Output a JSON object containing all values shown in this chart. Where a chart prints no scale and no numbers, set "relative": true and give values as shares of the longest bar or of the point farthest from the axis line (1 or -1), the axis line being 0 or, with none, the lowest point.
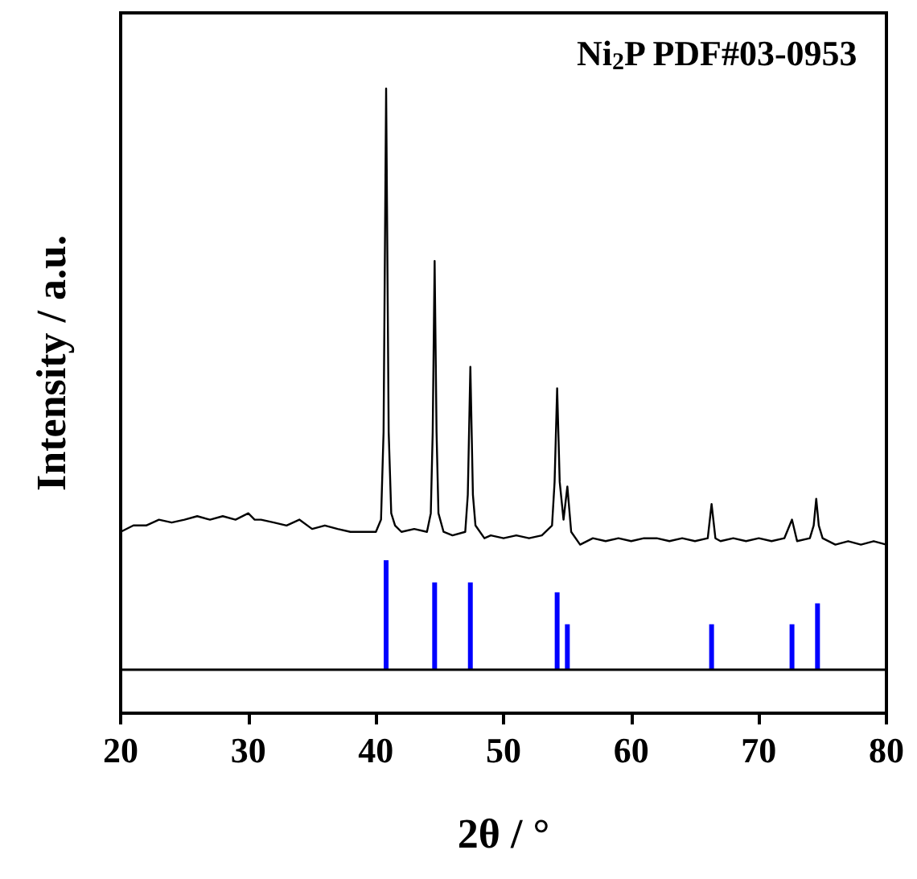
{
  "chart_data": {
    "type": "line",
    "relative": true,
    "xlabel": "2θ / °",
    "ylabel": "Intensity / a.u.",
    "annotations": [
      "Ni$_{2}$P PDF#03-0953"
    ],
    "xlim": [
      20,
      80
    ],
    "xticks": [
      20,
      30,
      40,
      50,
      60,
      70,
      80
    ],
    "grid": false,
    "marker": "none",
    "line_style": "solid",
    "ref_lines": [
      {
        "axis": "y",
        "value": 0,
        "color": "#000000"
      }
    ],
    "series": [
      {
        "color": "#000000",
        "x": [
          20,
          21,
          22,
          23,
          24,
          25,
          26,
          27,
          28,
          29,
          30,
          30.5,
          31,
          32,
          33,
          34,
          35,
          36,
          37,
          38,
          39,
          40,
          40.4,
          40.6,
          40.8,
          41.0,
          41.2,
          41.5,
          42,
          43,
          44,
          44.3,
          44.45,
          44.6,
          44.75,
          44.9,
          45.3,
          46,
          47,
          47.2,
          47.4,
          47.6,
          47.8,
          48.5,
          49,
          50,
          51,
          52,
          53,
          53.8,
          54.0,
          54.2,
          54.4,
          54.7,
          55.0,
          55.3,
          56,
          57,
          58,
          59,
          60,
          61,
          62,
          63,
          64,
          65,
          66,
          66.3,
          66.6,
          67,
          68,
          69,
          70,
          71,
          72,
          72.6,
          73,
          74,
          74.3,
          74.5,
          74.7,
          75,
          76,
          77,
          78,
          79,
          80
        ],
        "values": [
          0.237,
          0.248,
          0.248,
          0.258,
          0.253,
          0.258,
          0.264,
          0.258,
          0.264,
          0.258,
          0.269,
          0.258,
          0.258,
          0.253,
          0.248,
          0.258,
          0.242,
          0.248,
          0.242,
          0.237,
          0.237,
          0.237,
          0.258,
          0.409,
          1.0,
          0.409,
          0.269,
          0.248,
          0.237,
          0.242,
          0.237,
          0.269,
          0.409,
          0.703,
          0.409,
          0.269,
          0.237,
          0.231,
          0.237,
          0.301,
          0.521,
          0.301,
          0.248,
          0.226,
          0.231,
          0.226,
          0.231,
          0.226,
          0.231,
          0.248,
          0.323,
          0.484,
          0.323,
          0.258,
          0.315,
          0.237,
          0.215,
          0.226,
          0.221,
          0.226,
          0.221,
          0.226,
          0.226,
          0.221,
          0.226,
          0.221,
          0.226,
          0.285,
          0.226,
          0.221,
          0.226,
          0.221,
          0.226,
          0.221,
          0.226,
          0.258,
          0.221,
          0.226,
          0.248,
          0.294,
          0.248,
          0.226,
          0.215,
          0.221,
          0.215,
          0.221,
          0.215
        ]
      },
      {
        "type": "bar",
        "color": "#0000ff",
        "x": [
          40.8,
          44.6,
          47.4,
          54.2,
          55.0,
          66.3,
          72.6,
          74.6
        ],
        "values": [
          0.188,
          0.15,
          0.15,
          0.133,
          0.078,
          0.078,
          0.078,
          0.114
        ]
      }
    ]
  }
}
